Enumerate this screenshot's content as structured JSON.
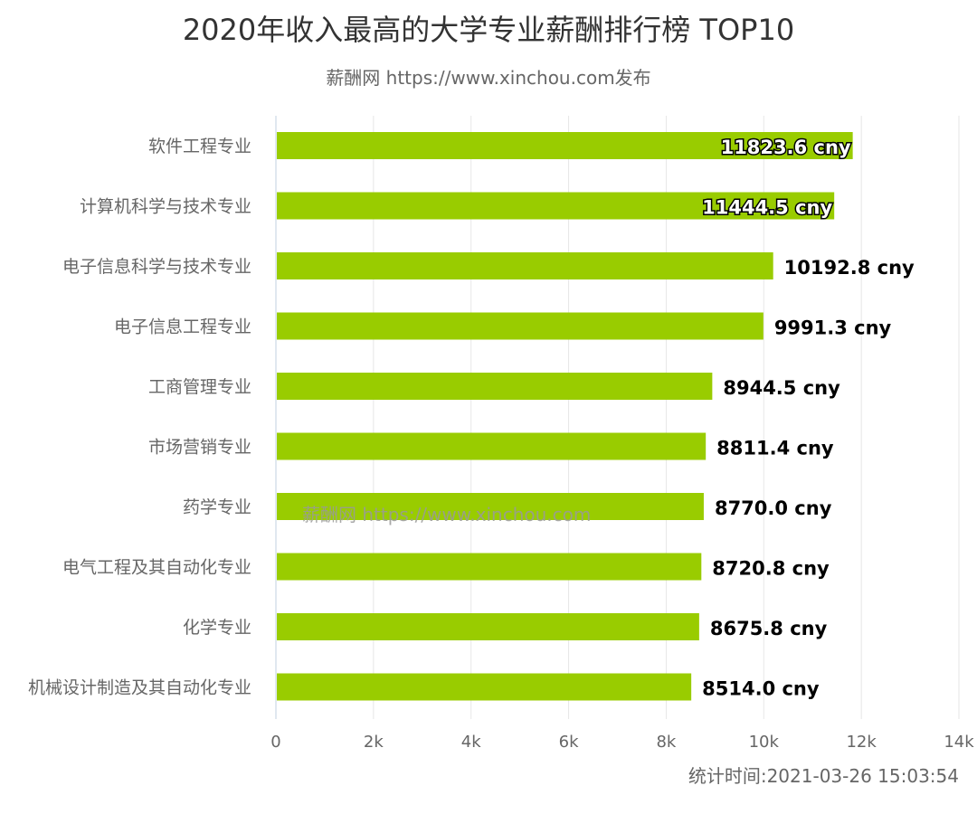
{
  "chart_data": {
    "type": "bar",
    "orientation": "horizontal",
    "title": "2020年收入最高的大学专业薪酬排行榜 TOP10",
    "subtitle": "薪酬网 https://www.xinchou.com发布",
    "categories": [
      "软件工程专业",
      "计算机科学与技术专业",
      "电子信息科学与技术专业",
      "电子信息工程专业",
      "工商管理专业",
      "市场营销专业",
      "药学专业",
      "电气工程及其自动化专业",
      "化学专业",
      "机械设计制造及其自动化专业"
    ],
    "values": [
      11823.6,
      11444.5,
      10192.8,
      9991.3,
      8944.5,
      8811.4,
      8770.0,
      8720.8,
      8675.8,
      8514.0
    ],
    "data_labels": [
      "11823.6 cny",
      "11444.5 cny",
      "10192.8 cny",
      "9991.3 cny",
      "8944.5 cny",
      "8811.4 cny",
      "8770.0 cny",
      "8720.8 cny",
      "8675.8 cny",
      "8514.0 cny"
    ],
    "xlim": [
      0,
      14000
    ],
    "x_ticks": [
      0,
      2000,
      4000,
      6000,
      8000,
      10000,
      12000,
      14000
    ],
    "x_tick_labels": [
      "0",
      "2k",
      "4k",
      "6k",
      "8k",
      "10k",
      "12k",
      "14k"
    ],
    "grid": "vertical",
    "bar_color": "#99cc00",
    "legend": "none"
  },
  "watermark": "薪酬网 https://www.xinchou.com",
  "timestamp": "统计时间:2021-03-26 15:03:54"
}
